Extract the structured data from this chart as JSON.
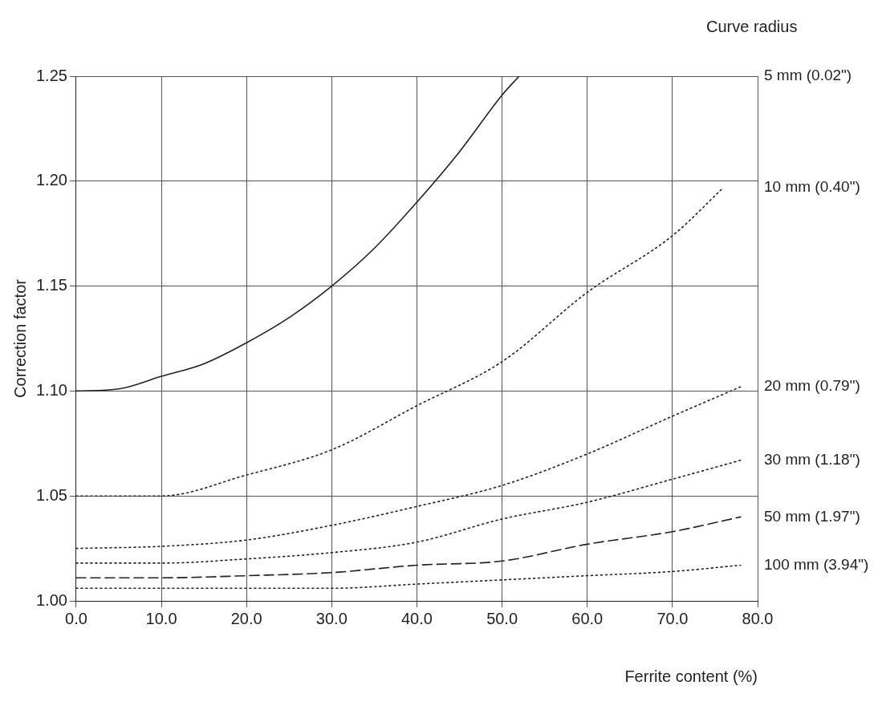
{
  "chart_data": {
    "type": "line",
    "xlabel": "Ferrite content (%)",
    "ylabel": "Correction factor",
    "legend_title": "Curve radius",
    "xlim": [
      0,
      80
    ],
    "ylim": [
      1.0,
      1.25
    ],
    "xticks": [
      {
        "value": 0,
        "label": "0.0"
      },
      {
        "value": 10,
        "label": "10.0"
      },
      {
        "value": 20,
        "label": "20.0"
      },
      {
        "value": 30,
        "label": "30.0"
      },
      {
        "value": 40,
        "label": "40.0"
      },
      {
        "value": 50,
        "label": "50.0"
      },
      {
        "value": 60,
        "label": "60.0"
      },
      {
        "value": 70,
        "label": "70.0"
      },
      {
        "value": 80,
        "label": "80.0"
      }
    ],
    "yticks": [
      {
        "value": 1.0,
        "label": "1.00"
      },
      {
        "value": 1.05,
        "label": "1.05"
      },
      {
        "value": 1.1,
        "label": "1.10"
      },
      {
        "value": 1.15,
        "label": "1.15"
      },
      {
        "value": 1.2,
        "label": "1.20"
      },
      {
        "value": 1.25,
        "label": "1.25"
      }
    ],
    "grid": true,
    "legend": false,
    "marker": "none",
    "series": [
      {
        "name": "5 mm (0.02\")",
        "color": "#222222",
        "line_style": "solid",
        "x": [
          0,
          5,
          10,
          15,
          20,
          25,
          30,
          35,
          40,
          45,
          50,
          52
        ],
        "values": [
          1.1,
          1.101,
          1.107,
          1.113,
          1.123,
          1.135,
          1.15,
          1.168,
          1.19,
          1.214,
          1.241,
          1.25
        ]
      },
      {
        "name": "10 mm (0.40\")",
        "color": "#222222",
        "line_style": "dotted",
        "x": [
          0,
          10,
          20,
          30,
          40,
          50,
          60,
          70,
          76
        ],
        "values": [
          1.05,
          1.05,
          1.06,
          1.072,
          1.093,
          1.114,
          1.147,
          1.174,
          1.197
        ]
      },
      {
        "name": "20 mm (0.79\")",
        "color": "#222222",
        "line_style": "dotted",
        "x": [
          0,
          10,
          20,
          30,
          40,
          50,
          60,
          70,
          78
        ],
        "values": [
          1.025,
          1.026,
          1.029,
          1.036,
          1.045,
          1.055,
          1.07,
          1.088,
          1.102
        ]
      },
      {
        "name": "30 mm (1.18\")",
        "color": "#222222",
        "line_style": "dotted",
        "x": [
          0,
          10,
          20,
          30,
          40,
          50,
          60,
          70,
          78
        ],
        "values": [
          1.018,
          1.018,
          1.02,
          1.023,
          1.028,
          1.039,
          1.047,
          1.058,
          1.067
        ]
      },
      {
        "name": "50 mm (1.97\")",
        "color": "#222222",
        "line_style": "dashed",
        "x": [
          0,
          10,
          20,
          30,
          40,
          50,
          60,
          70,
          78
        ],
        "values": [
          1.011,
          1.011,
          1.012,
          1.0135,
          1.017,
          1.019,
          1.027,
          1.033,
          1.04
        ]
      },
      {
        "name": "100 mm (3.94\")",
        "color": "#222222",
        "line_style": "dotted",
        "x": [
          0,
          10,
          20,
          30,
          40,
          50,
          60,
          70,
          78
        ],
        "values": [
          1.006,
          1.006,
          1.006,
          1.006,
          1.008,
          1.01,
          1.012,
          1.014,
          1.017
        ]
      }
    ]
  }
}
